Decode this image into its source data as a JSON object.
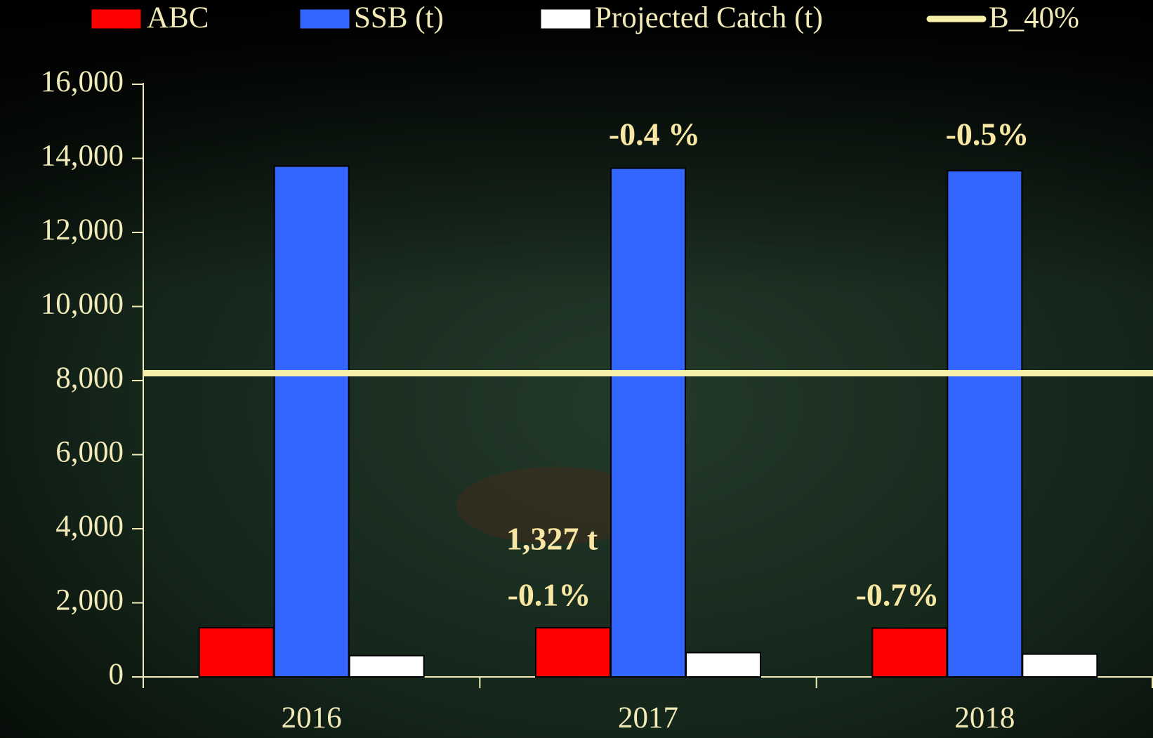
{
  "chart_data": {
    "type": "bar",
    "categories": [
      "2016",
      "2017",
      "2018"
    ],
    "series": [
      {
        "name": "ABC",
        "color": "#ff0000",
        "values": [
          1328,
          1327,
          1318
        ]
      },
      {
        "name": "SSB (t)",
        "color": "#3366ff",
        "values": [
          13790,
          13735,
          13665
        ]
      },
      {
        "name": "Projected Catch (t)",
        "color": "#ffffff",
        "values": [
          575,
          655,
          615
        ]
      }
    ],
    "reference_line": {
      "name": "B_40%",
      "color": "#f5efaa",
      "value": 8200
    },
    "annotations": [
      "-0.4 %",
      "-0.5%",
      "1,327 t",
      "-0.1%",
      "-0.7%"
    ],
    "ylim": [
      0,
      16000
    ],
    "yticks": [
      0,
      {
        "value": 2000,
        "label": "2,000"
      },
      {
        "value": 4000,
        "label": "4,000"
      },
      {
        "value": 6000,
        "label": "6,000"
      },
      {
        "value": 8000,
        "label": "8,000"
      },
      {
        "value": 10000,
        "label": "10,000"
      },
      {
        "value": 12000,
        "label": "12,000"
      },
      {
        "value": 14000,
        "label": "14,000"
      },
      {
        "value": 16000,
        "label": "16,000"
      }
    ],
    "grid": false,
    "legend": "top"
  }
}
